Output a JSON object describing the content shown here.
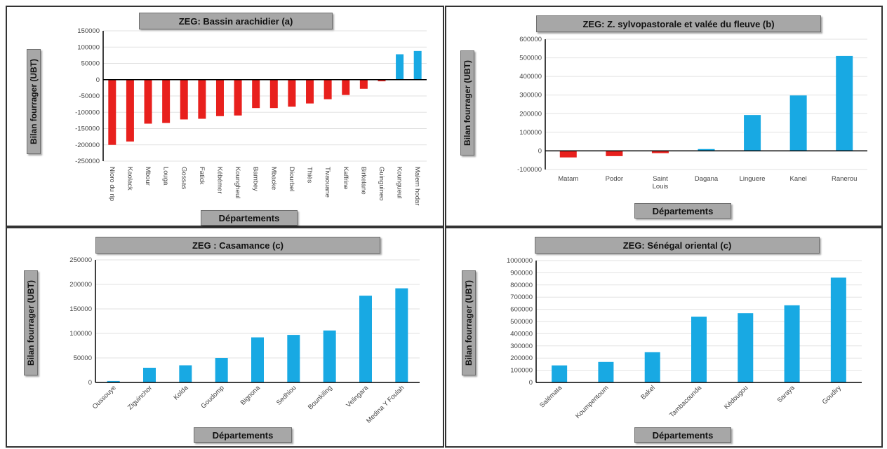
{
  "chart_data": [
    {
      "type": "bar",
      "title": "ZEG: Bassin arachidier (a)",
      "xlabel": "Départements",
      "ylabel": "Bilan fourrager (UBT)",
      "ylim": [
        -250000,
        150000
      ],
      "yticks": [
        -250000,
        -200000,
        -150000,
        -100000,
        -50000,
        0,
        50000,
        100000,
        150000
      ],
      "grid": true,
      "categories": [
        "Nioro du rip",
        "Kaolack",
        "Mbour",
        "Louga",
        "Gossas",
        "Fatick",
        "Kébémer",
        "Koungheul",
        "Bambey",
        "Mbacke",
        "Diourbel",
        "Thiès",
        "Tivaouane",
        "Kaffrine",
        "Birkelane",
        "Guinguineo",
        "Koungueul",
        "Malem hodar"
      ],
      "values": [
        -200000,
        -190000,
        -135000,
        -133000,
        -122000,
        -120000,
        -112000,
        -110000,
        -87000,
        -87000,
        -83000,
        -73000,
        -60000,
        -47000,
        -28000,
        -5000,
        78000,
        88000
      ],
      "colors": {
        "negative": "#e8201d",
        "positive": "#18a9e3"
      }
    },
    {
      "type": "bar",
      "title": "ZEG: Z. sylvopastorale et valée du fleuve (b)",
      "xlabel": "Départements",
      "ylabel": "Bilan fourrager (UBT)",
      "ylim": [
        -100000,
        600000
      ],
      "yticks": [
        -100000,
        0,
        100000,
        200000,
        300000,
        400000,
        500000,
        600000
      ],
      "grid": true,
      "categories": [
        "Matam",
        "Podor",
        "Saint Louis",
        "Dagana",
        "Linguere",
        "Kanel",
        "Ranerou"
      ],
      "values": [
        -35000,
        -28000,
        -12000,
        10000,
        193000,
        298000,
        510000
      ],
      "colors": {
        "negative": "#e8201d",
        "positive": "#18a9e3"
      }
    },
    {
      "type": "bar",
      "title": "ZEG : Casamance (c)",
      "xlabel": "Départements",
      "ylabel": "Bilan fourrager (UBT)",
      "ylim": [
        0,
        250000
      ],
      "yticks": [
        0,
        50000,
        100000,
        150000,
        200000,
        250000
      ],
      "grid": true,
      "categories": [
        "Oussouye",
        "Ziguinchor",
        "Kolda",
        "Goudomp",
        "Bignona",
        "Sedhiou",
        "Bounkiling",
        "Velingara",
        "Medina Y Foulah"
      ],
      "values": [
        3000,
        30000,
        35000,
        50000,
        92000,
        97000,
        106000,
        177000,
        192000
      ],
      "colors": {
        "negative": "#e8201d",
        "positive": "#18a9e3"
      }
    },
    {
      "type": "bar",
      "title": "ZEG: Sénégal oriental (c)",
      "xlabel": "Départements",
      "ylabel": "Bilan fourrager (UBT)",
      "ylim": [
        0,
        1000000
      ],
      "yticks": [
        0,
        100000,
        200000,
        300000,
        400000,
        500000,
        600000,
        700000,
        800000,
        900000,
        1000000
      ],
      "grid": true,
      "categories": [
        "Salémata",
        "Koumpentoum",
        "Bakel",
        "Tambacounda",
        "Kédougou",
        "Saraya",
        "Goudiry"
      ],
      "values": [
        140000,
        168000,
        248000,
        540000,
        568000,
        633000,
        860000
      ],
      "colors": {
        "negative": "#e8201d",
        "positive": "#18a9e3"
      }
    }
  ]
}
